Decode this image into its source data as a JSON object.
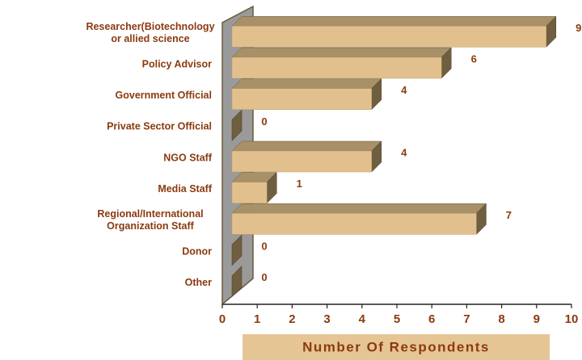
{
  "chart_data": {
    "type": "bar3d_horizontal",
    "categories": [
      "Researcher(Biotechnology\nor allied science",
      "Policy Advisor",
      "Government Official",
      "Private Sector Official",
      "NGO Staff",
      "Media Staff",
      "Regional/International\nOrganization Staff",
      "Donor",
      "Other"
    ],
    "values": [
      9,
      6,
      4,
      0,
      4,
      1,
      7,
      0,
      0
    ],
    "color": "#e2c08e",
    "xlabel": "Number Of Respondents",
    "xlim": [
      0,
      10
    ],
    "xticks": [
      0,
      1,
      2,
      3,
      4,
      5,
      6,
      7,
      8,
      9,
      10
    ]
  }
}
